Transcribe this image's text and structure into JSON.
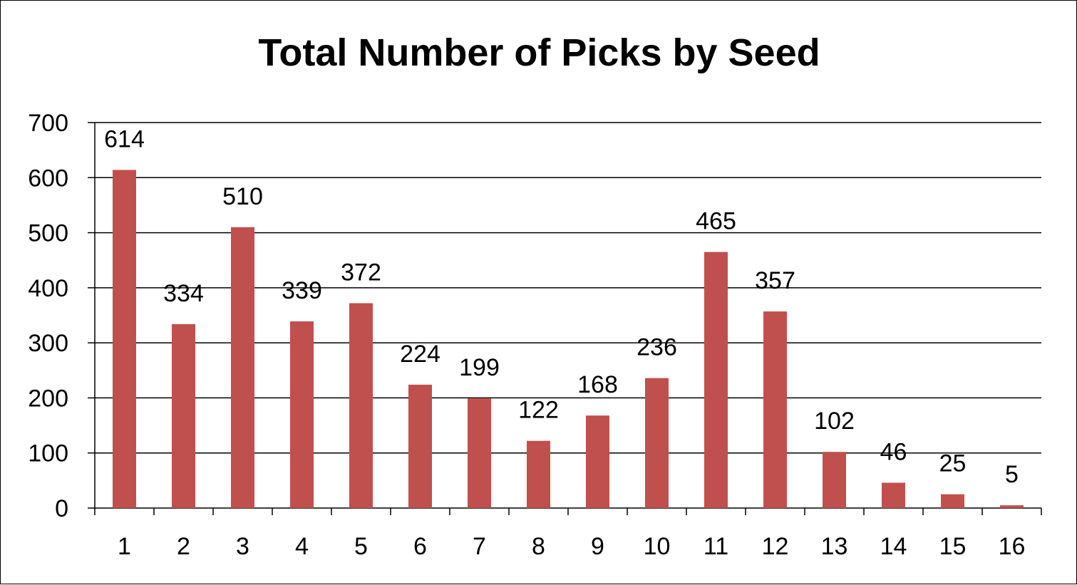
{
  "chart_data": {
    "type": "bar",
    "title": "Total Number of Picks by Seed",
    "xlabel": "",
    "ylabel": "",
    "categories": [
      "1",
      "2",
      "3",
      "4",
      "5",
      "6",
      "7",
      "8",
      "9",
      "10",
      "11",
      "12",
      "13",
      "14",
      "15",
      "16"
    ],
    "values": [
      614,
      334,
      510,
      339,
      372,
      224,
      199,
      122,
      168,
      236,
      465,
      357,
      102,
      46,
      25,
      5
    ],
    "ylim": [
      0,
      700
    ],
    "yticks": [
      0,
      100,
      200,
      300,
      400,
      500,
      600,
      700
    ],
    "grid": true,
    "legend": "none",
    "data_labels": true,
    "bar_color": "#c0504d"
  }
}
